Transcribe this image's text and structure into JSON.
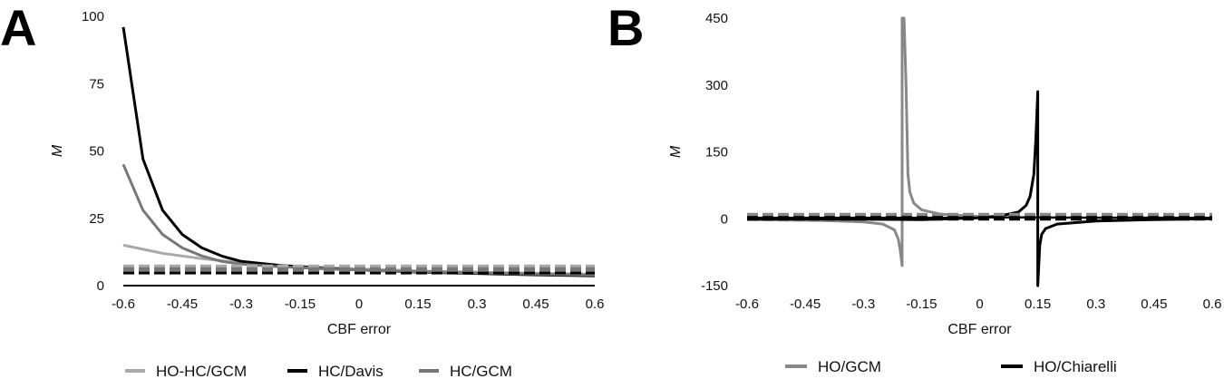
{
  "chart_data": [
    {
      "type": "line",
      "panel": "A",
      "title": "",
      "xlabel": "CBF error",
      "ylabel": "M",
      "xlim": [
        -0.6,
        0.6
      ],
      "ylim": [
        0,
        100
      ],
      "x_ticks": [
        "-0.6",
        "-0.45",
        "-0.3",
        "-0.15",
        "0",
        "0.15",
        "0.3",
        "0.45",
        "0.6"
      ],
      "y_ticks": [
        "0",
        "25",
        "50",
        "75",
        "100"
      ],
      "legend_position": "bottom",
      "series": [
        {
          "name": "HO-HC/GCM",
          "color": "#aaaaaa",
          "style": "solid",
          "x": [
            -0.6,
            -0.5,
            -0.4,
            -0.3,
            -0.2,
            -0.1,
            0,
            0.15,
            0.3,
            0.45,
            0.6
          ],
          "y": [
            15,
            12,
            10,
            8.5,
            7.5,
            6.8,
            6.2,
            5.5,
            5.0,
            4.6,
            4.2
          ]
        },
        {
          "name": "HC/Davis",
          "color": "#000000",
          "style": "solid",
          "x": [
            -0.6,
            -0.55,
            -0.5,
            -0.45,
            -0.4,
            -0.35,
            -0.3,
            -0.2,
            -0.1,
            0,
            0.15,
            0.3,
            0.45,
            0.6
          ],
          "y": [
            96,
            47,
            28,
            19,
            14,
            11,
            9,
            7.5,
            6.5,
            5.8,
            5.0,
            4.5,
            4.0,
            3.6
          ]
        },
        {
          "name": "HC/GCM",
          "color": "#777777",
          "style": "solid",
          "x": [
            -0.6,
            -0.55,
            -0.5,
            -0.45,
            -0.4,
            -0.35,
            -0.3,
            -0.2,
            -0.1,
            0,
            0.15,
            0.3,
            0.45,
            0.6
          ],
          "y": [
            45,
            28,
            19,
            14,
            11,
            9,
            8,
            7,
            6.3,
            5.8,
            5.2,
            4.7,
            4.3,
            3.9
          ]
        },
        {
          "name": "HO-HC/GCM",
          "color": "#aaaaaa",
          "style": "dashed",
          "x": [
            -0.6,
            0.6
          ],
          "y": [
            7,
            7
          ]
        },
        {
          "name": "HC/Davis",
          "color": "#000000",
          "style": "dashed",
          "x": [
            -0.6,
            0.6
          ],
          "y": [
            5,
            5
          ]
        },
        {
          "name": "HC/GCM",
          "color": "#777777",
          "style": "dashed",
          "x": [
            -0.6,
            0.6
          ],
          "y": [
            6,
            6
          ]
        }
      ]
    },
    {
      "type": "line",
      "panel": "B",
      "title": "",
      "xlabel": "CBF error",
      "ylabel": "M",
      "xlim": [
        -0.6,
        0.6
      ],
      "ylim": [
        -150,
        450
      ],
      "x_ticks": [
        "-0.6",
        "-0.45",
        "-0.3",
        "-0.15",
        "0",
        "0.15",
        "0.3",
        "0.45",
        "0.6"
      ],
      "y_ticks": [
        "-150",
        "0",
        "150",
        "300",
        "450"
      ],
      "legend_position": "bottom",
      "series": [
        {
          "name": "HO/GCM",
          "color": "#888888",
          "style": "solid",
          "x": [
            -0.6,
            -0.5,
            -0.4,
            -0.3,
            -0.25,
            -0.22,
            -0.21,
            -0.205,
            -0.2,
            -0.2,
            -0.195,
            -0.19,
            -0.185,
            -0.18,
            -0.17,
            -0.15,
            -0.1,
            0,
            0.15,
            0.3,
            0.45,
            0.6
          ],
          "y": [
            -2,
            -3,
            -4,
            -7,
            -12,
            -25,
            -45,
            -70,
            -105,
            450,
            450,
            300,
            100,
            60,
            35,
            20,
            10,
            5,
            3,
            2,
            2,
            1
          ]
        },
        {
          "name": "HO/Chiarelli",
          "color": "#000000",
          "style": "solid",
          "x": [
            -0.6,
            -0.3,
            -0.15,
            0,
            0.05,
            0.1,
            0.12,
            0.13,
            0.14,
            0.145,
            0.15,
            0.15,
            0.155,
            0.16,
            0.17,
            0.2,
            0.3,
            0.45,
            0.6
          ],
          "y": [
            0,
            -1,
            -2,
            2,
            6,
            15,
            30,
            50,
            100,
            180,
            285,
            -150,
            -60,
            -35,
            -22,
            -12,
            -5,
            -2,
            0
          ]
        },
        {
          "name": "HO/GCM",
          "color": "#888888",
          "style": "dashed",
          "x": [
            -0.6,
            0.6
          ],
          "y": [
            8,
            8
          ]
        },
        {
          "name": "HO/Chiarelli",
          "color": "#000000",
          "style": "dashed",
          "x": [
            -0.6,
            0.6
          ],
          "y": [
            1,
            1
          ]
        }
      ]
    }
  ],
  "legendA": [
    "HO-HC/GCM",
    "HC/Davis",
    "HC/GCM"
  ],
  "legendB": [
    "HO/GCM",
    "HO/Chiarelli"
  ],
  "colors": {
    "light_gray": "#aaaaaa",
    "mid_gray": "#777777",
    "black": "#000000"
  }
}
